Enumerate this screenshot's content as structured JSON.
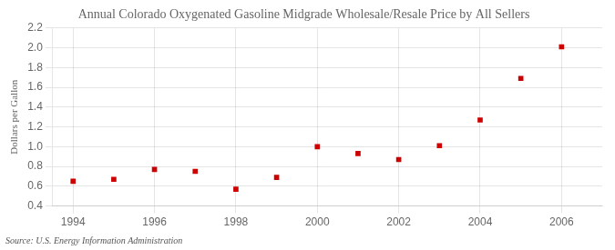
{
  "chart_data": {
    "type": "scatter",
    "title": "Annual Colorado Oxygenated Gasoline Midgrade Wholesale/Resale Price by All Sellers",
    "ylabel": "Dollars per Gallon",
    "annotation": "Source: U.S. Energy Information Administration",
    "x": [
      1994,
      1995,
      1996,
      1997,
      1998,
      1999,
      2000,
      2001,
      2002,
      2003,
      2004,
      2005,
      2006
    ],
    "values": [
      0.65,
      0.67,
      0.77,
      0.75,
      0.57,
      0.69,
      1.0,
      0.93,
      0.87,
      1.01,
      1.27,
      1.69,
      2.01
    ],
    "color": "#cc0000",
    "marker": "square",
    "xlim": [
      1993.5,
      2007.0
    ],
    "xticks": [
      1994,
      1996,
      1998,
      2000,
      2002,
      2004,
      2006
    ],
    "ylim": [
      0.4,
      2.2
    ],
    "yticks": [
      0.4,
      0.6,
      0.8,
      {
        "value": 1.0,
        "label": "1.0"
      },
      1.2,
      1.4,
      1.6,
      1.8,
      {
        "value": 2.0,
        "label": "2.0"
      },
      2.2
    ],
    "grid": true
  }
}
